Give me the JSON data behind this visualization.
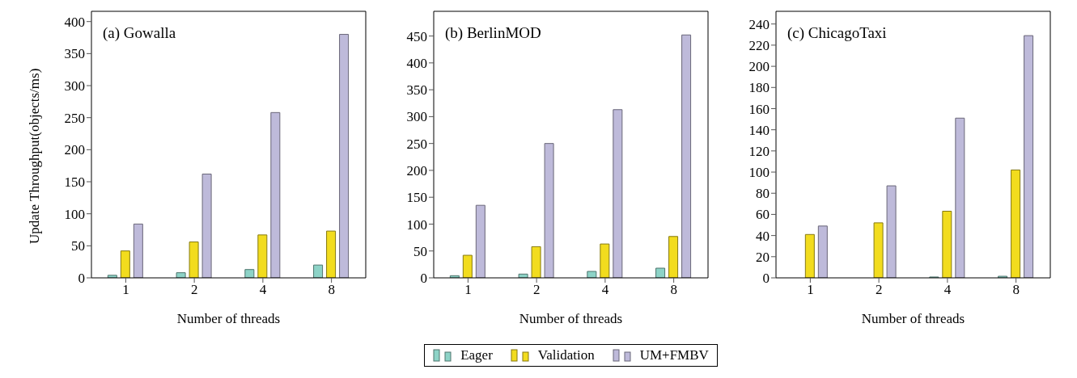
{
  "chart_data": [
    {
      "type": "bar",
      "title": "(a) Gowalla",
      "xlabel": "Number of threads",
      "ylabel": "Update Throughput(objects/ms)",
      "categories": [
        "1",
        "2",
        "4",
        "8"
      ],
      "ylim": [
        0,
        416
      ],
      "yticks": [
        0,
        50,
        100,
        150,
        200,
        250,
        300,
        350,
        400
      ],
      "grid": false,
      "legend": false,
      "series": [
        {
          "color": "#8dd3c7",
          "values": [
            4,
            8,
            13,
            20
          ]
        },
        {
          "color": "#f2dc1e",
          "values": [
            42,
            56,
            67,
            73
          ]
        },
        {
          "color": "#bebada",
          "values": [
            84,
            162,
            258,
            380
          ]
        }
      ]
    },
    {
      "type": "bar",
      "title": "(b) BerlinMOD",
      "xlabel": "Number of threads",
      "categories": [
        "1",
        "2",
        "4",
        "8"
      ],
      "ylim": [
        0,
        496
      ],
      "yticks": [
        0,
        50,
        100,
        150,
        200,
        250,
        300,
        350,
        400,
        450
      ],
      "grid": false,
      "legend": "bottom",
      "series": [
        {
          "name": "Eager",
          "color": "#8dd3c7",
          "values": [
            4,
            7,
            12,
            18
          ]
        },
        {
          "name": "Validation",
          "color": "#f2dc1e",
          "values": [
            42,
            58,
            63,
            77
          ]
        },
        {
          "name": "UM+FMBV",
          "color": "#bebada",
          "values": [
            135,
            250,
            313,
            452
          ]
        }
      ]
    },
    {
      "type": "bar",
      "title": "(c) ChicagoTaxi",
      "xlabel": "Number of threads",
      "categories": [
        "1",
        "2",
        "4",
        "8"
      ],
      "ylim": [
        0,
        252
      ],
      "yticks": [
        0,
        20,
        40,
        60,
        80,
        100,
        120,
        140,
        160,
        180,
        200,
        220,
        240
      ],
      "grid": false,
      "legend": false,
      "series": [
        {
          "color": "#8dd3c7",
          "values": [
            null,
            null,
            0.8,
            1.5
          ]
        },
        {
          "color": "#f2dc1e",
          "values": [
            41,
            52,
            63,
            102
          ]
        },
        {
          "color": "#bebada",
          "values": [
            49,
            87,
            151,
            229
          ]
        }
      ]
    }
  ]
}
